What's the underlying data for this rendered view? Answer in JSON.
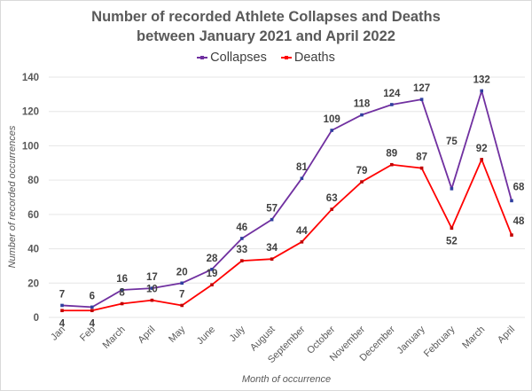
{
  "chart_data": {
    "type": "line",
    "title_line1": "Number of recorded Athlete Collapses and Deaths",
    "title_line2": "between January 2021 and April 2022",
    "xlabel": "Month of occurrence",
    "ylabel": "Number of recorded occurrences",
    "ylim": [
      0,
      140
    ],
    "yticks": [
      0,
      20,
      40,
      60,
      80,
      100,
      120,
      140
    ],
    "grid": true,
    "legend_position": "top-center",
    "categories": [
      "Jan",
      "Feb",
      "March",
      "April",
      "May",
      "June",
      "July",
      "August",
      "September",
      "October",
      "November",
      "December",
      "January",
      "February",
      "March",
      "April"
    ],
    "series": [
      {
        "name": "Collapses",
        "color": "#7030a0",
        "marker_color": "#2f3f9f",
        "values": [
          7,
          6,
          16,
          17,
          20,
          28,
          46,
          57,
          81,
          109,
          118,
          124,
          127,
          75,
          132,
          68
        ]
      },
      {
        "name": "Deaths",
        "color": "#ff0000",
        "marker_color": "#c00000",
        "values": [
          4,
          4,
          8,
          10,
          7,
          19,
          33,
          34,
          44,
          63,
          79,
          89,
          87,
          52,
          92,
          48
        ]
      }
    ]
  }
}
